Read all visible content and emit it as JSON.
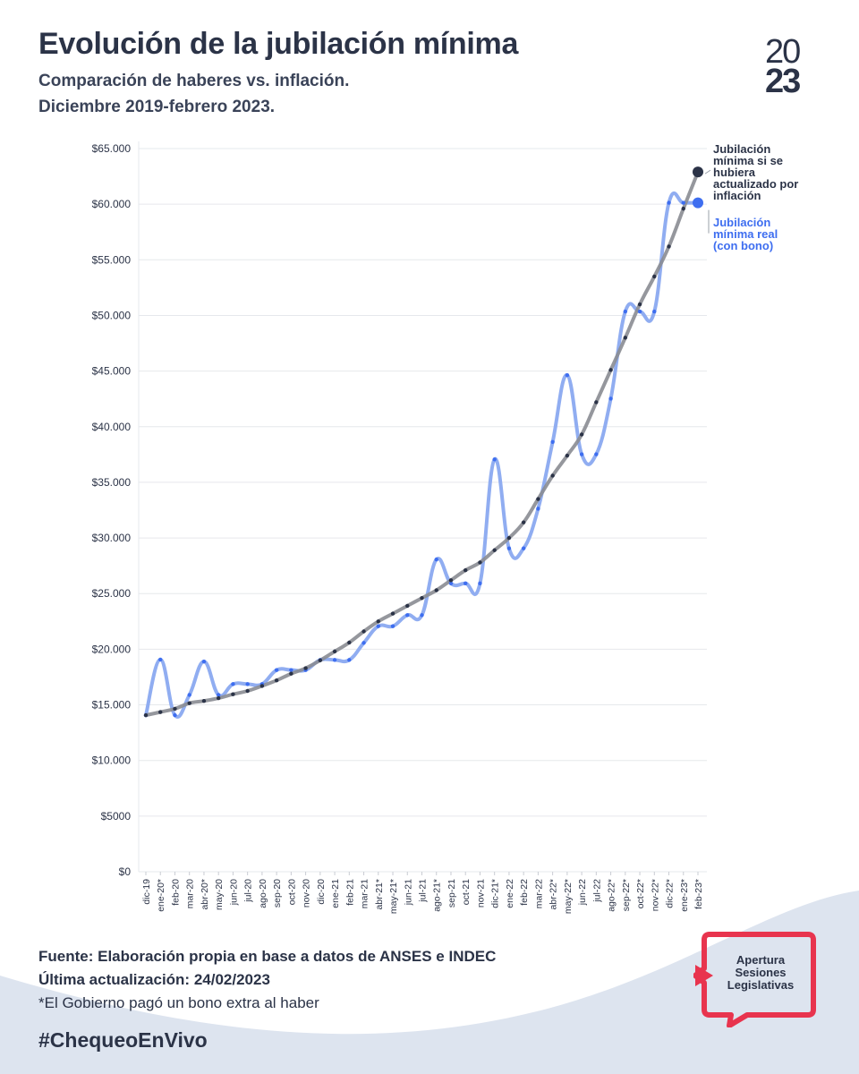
{
  "header": {
    "title": "Evolución de la jubilación mínima",
    "subtitle_line1": "Comparación de haberes vs. inflación.",
    "subtitle_line2": "Diciembre 2019-febrero 2023.",
    "year_top": "20",
    "year_bottom": "23"
  },
  "footer": {
    "source": "Fuente: Elaboración propia en base a datos de ANSES e INDEC",
    "updated": "Última actualización: 24/02/2023",
    "note": "*El Gobierno pagó un bono extra al haber",
    "hashtag": "#ChequeoEnVivo"
  },
  "badge": {
    "line1": "Apertura",
    "line2": "Sesiones",
    "line3": "Legislativas"
  },
  "annotations": {
    "inflation_label": "Jubilación mínima si se hubiera actualizado por inflación",
    "real_label": "Jubilación mínima real (con bono)"
  },
  "colors": {
    "inflation_line": "#8a8c92",
    "inflation_dot": "#2b3347",
    "real_line": "#8aa9f0",
    "real_dot": "#3e6ef0",
    "text_dark": "#2b3347",
    "badge_red": "#e8344e",
    "wave": "#dde4ef"
  },
  "chart_data": {
    "type": "line",
    "xlabel": "",
    "ylabel": "",
    "ylim": [
      0,
      65000
    ],
    "y_ticks": [
      0,
      5000,
      10000,
      15000,
      20000,
      25000,
      30000,
      35000,
      40000,
      45000,
      50000,
      55000,
      60000,
      65000
    ],
    "y_tick_labels": [
      "$0",
      "$5000",
      "$10.000",
      "$15.000",
      "$20.000",
      "$25.000",
      "$30.000",
      "$35.000",
      "$40.000",
      "$45.000",
      "$50.000",
      "$55.000",
      "$60.000",
      "$65.000"
    ],
    "grid": true,
    "categories": [
      "dic-19",
      "ene-20*",
      "feb-20",
      "mar-20",
      "abr-20*",
      "may-20",
      "jun-20",
      "jul-20",
      "ago-20",
      "sep-20",
      "oct-20",
      "nov-20",
      "dic-20",
      "ene-21",
      "feb-21",
      "mar-21",
      "abr-21*",
      "may-21*",
      "jun-21",
      "jul-21",
      "ago-21*",
      "sep-21",
      "oct-21",
      "nov-21",
      "dic-21*",
      "ene-22",
      "feb-22",
      "mar-22",
      "abr-22*",
      "may-22*",
      "jun-22",
      "jul-22",
      "ago-22*",
      "sep-22*",
      "oct-22*",
      "nov-22*",
      "dic-22*",
      "ene-23*",
      "feb-23*"
    ],
    "series": [
      {
        "name": "Jubilación mínima si se hubiera actualizado por inflación",
        "values": [
          14068,
          14350,
          14650,
          15150,
          15350,
          15600,
          15950,
          16250,
          16700,
          17200,
          17800,
          18300,
          19000,
          19800,
          20600,
          21600,
          22500,
          23200,
          23900,
          24600,
          25300,
          26200,
          27100,
          27800,
          28900,
          30000,
          31400,
          33500,
          35600,
          37400,
          39300,
          42200,
          45100,
          48000,
          51000,
          53500,
          56200,
          59600,
          62900
        ]
      },
      {
        "name": "Jubilación mínima real (con bono)",
        "values": [
          14068,
          19068,
          14068,
          15892,
          18892,
          15892,
          16864,
          16864,
          16864,
          18129,
          18129,
          18129,
          19035,
          19035,
          19035,
          20571,
          22068,
          22068,
          23065,
          23065,
          28065,
          25922,
          25922,
          25922,
          37064,
          29062,
          29062,
          32630,
          38630,
          44630,
          37524,
          37524,
          42524,
          50353,
          50353,
          50353,
          60124,
          60124,
          60124
        ]
      }
    ]
  }
}
